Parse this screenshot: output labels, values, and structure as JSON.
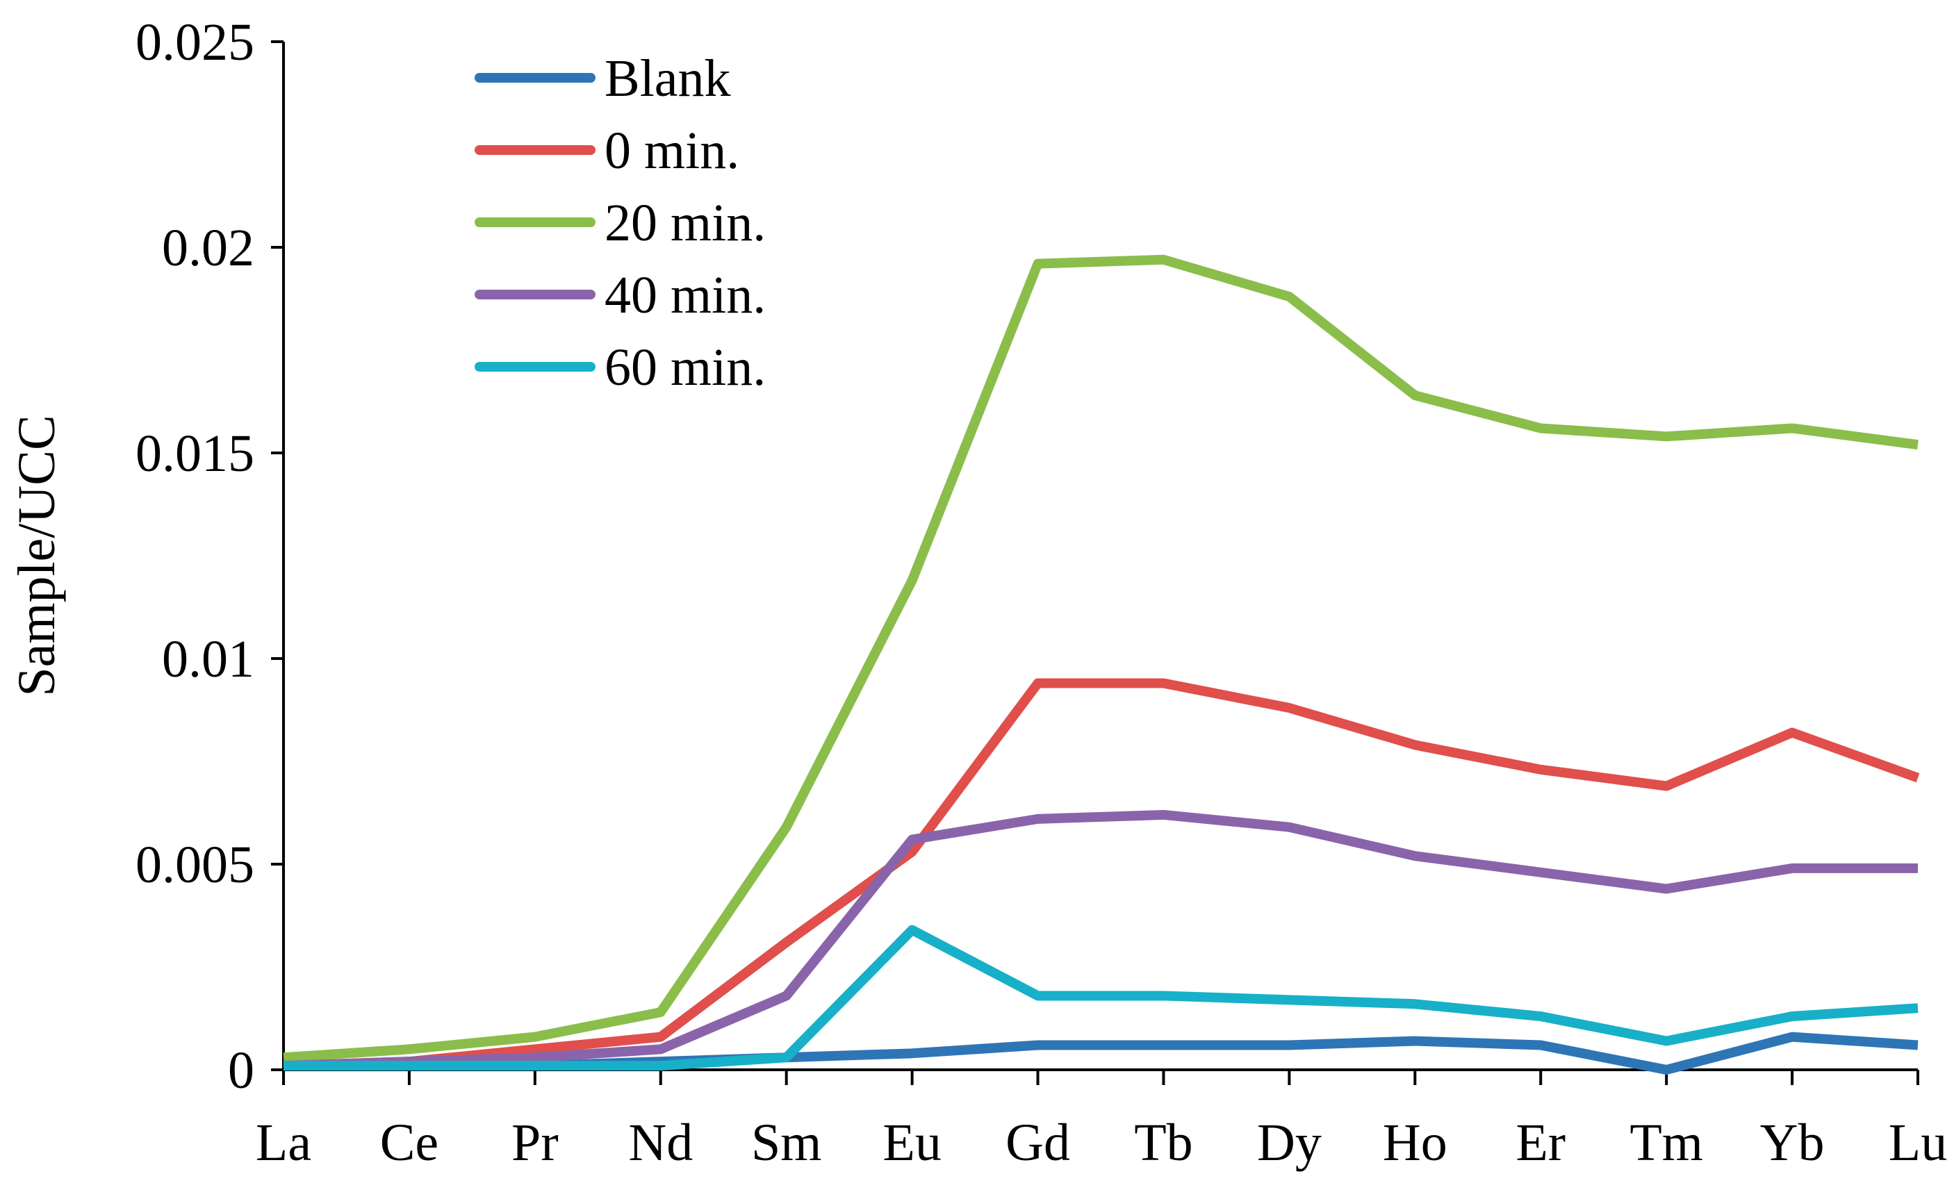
{
  "chart_data": {
    "type": "line",
    "title": "",
    "xlabel": "",
    "ylabel": "Sample/UCC",
    "categories": [
      "La",
      "Ce",
      "Pr",
      "Nd",
      "Sm",
      "Eu",
      "Gd",
      "Tb",
      "Dy",
      "Ho",
      "Er",
      "Tm",
      "Yb",
      "Lu"
    ],
    "ylim": [
      0,
      0.025
    ],
    "yticks": [
      0,
      0.005,
      0.01,
      0.015,
      0.02,
      0.025
    ],
    "ytick_labels": [
      "0",
      "0.005",
      "0.01",
      "0.015",
      "0.02",
      "0.025"
    ],
    "grid": false,
    "legend_position": "top-left",
    "series": [
      {
        "name": "Blank",
        "color": "#2e75b6",
        "values": [
          0.0001,
          0.0001,
          0.0001,
          0.0002,
          0.0003,
          0.0004,
          0.0006,
          0.0006,
          0.0006,
          0.0007,
          0.0006,
          0.0,
          0.0008,
          0.0006
        ]
      },
      {
        "name": "0 min.",
        "color": "#e04f4b",
        "values": [
          0.0001,
          0.0002,
          0.0005,
          0.0008,
          0.0031,
          0.0053,
          0.0094,
          0.0094,
          0.0088,
          0.0079,
          0.0073,
          0.0069,
          0.0082,
          0.0071
        ]
      },
      {
        "name": "20 min.",
        "color": "#8bbd4a",
        "values": [
          0.0003,
          0.0005,
          0.0008,
          0.0014,
          0.0059,
          0.0119,
          0.0196,
          0.0197,
          0.0188,
          0.0164,
          0.0156,
          0.0154,
          0.0156,
          0.0152
        ]
      },
      {
        "name": "40 min.",
        "color": "#8a64aa",
        "values": [
          0.0001,
          0.0002,
          0.0003,
          0.0005,
          0.0018,
          0.0056,
          0.0061,
          0.0062,
          0.0059,
          0.0052,
          0.0048,
          0.0044,
          0.0049,
          0.0049
        ]
      },
      {
        "name": "60 min.",
        "color": "#17b0c8",
        "values": [
          0.0001,
          0.0001,
          0.0001,
          0.0001,
          0.0003,
          0.0034,
          0.0018,
          0.0018,
          0.0017,
          0.0016,
          0.0013,
          0.0007,
          0.0013,
          0.0015
        ]
      }
    ]
  }
}
